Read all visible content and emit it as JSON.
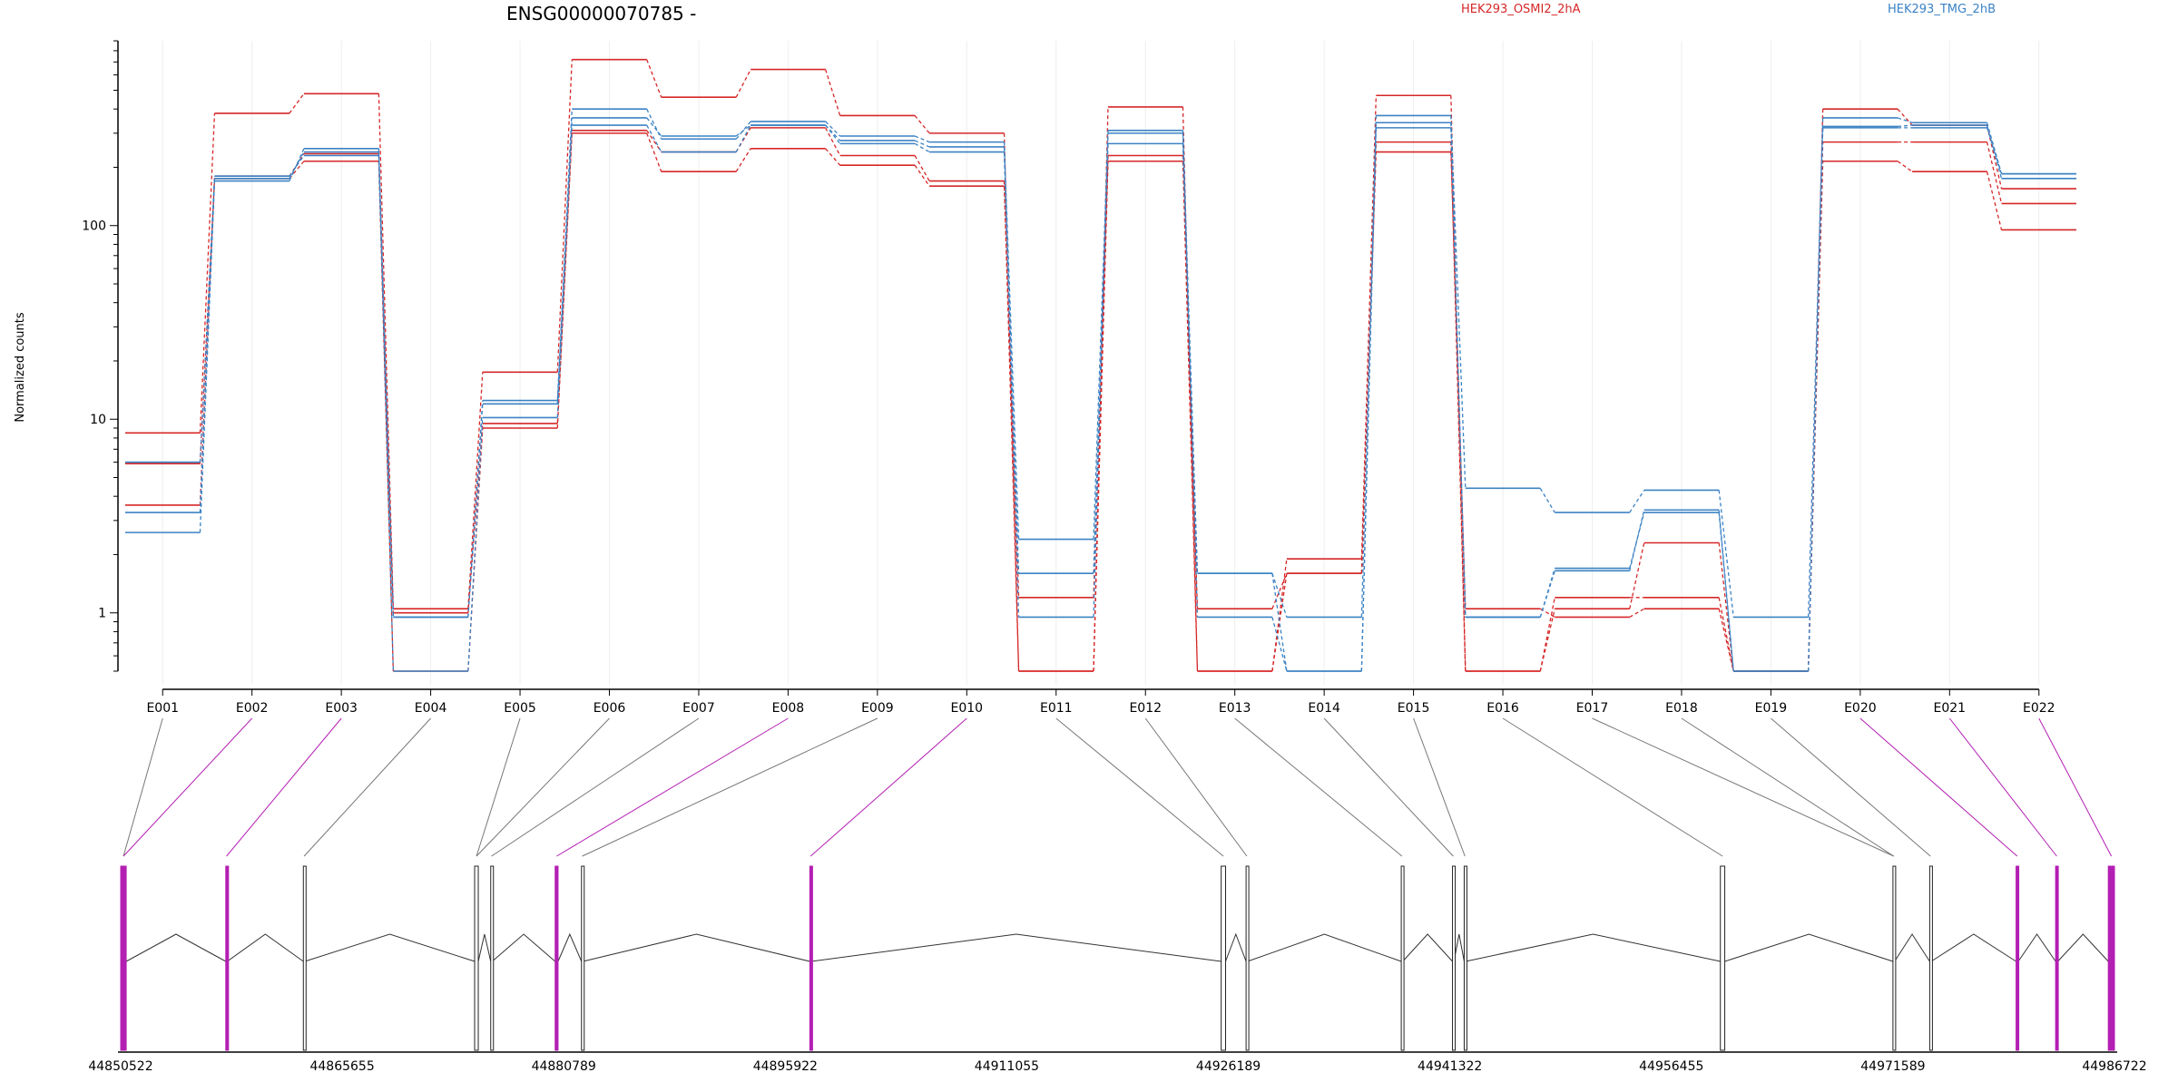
{
  "chart_data": {
    "type": "line",
    "title": "ENSG00000070785 -",
    "ylabel": "Normalized counts",
    "yscale": "log",
    "ylim": [
      0.5,
      900
    ],
    "yticks": [
      {
        "label": "1",
        "value": 1
      },
      {
        "label": "10",
        "value": 10
      },
      {
        "label": "100",
        "value": 100
      }
    ],
    "grid": "vertical",
    "categories": [
      "E001",
      "E002",
      "E003",
      "E004",
      "E005",
      "E006",
      "E007",
      "E008",
      "E009",
      "E010",
      "E011",
      "E012",
      "E013",
      "E014",
      "E015",
      "E016",
      "E017",
      "E018",
      "E019",
      "E020",
      "E021",
      "E022"
    ],
    "legend": [
      {
        "label": "HEK293_OSMI2_2hA",
        "color": "#d62728"
      },
      {
        "label": "HEK293_TMG_2hB",
        "color": "#3b82c4"
      }
    ],
    "series": [
      {
        "color": "#d62728",
        "values": [
          8.5,
          380,
          480,
          1.05,
          17.5,
          720,
          460,
          640,
          370,
          300,
          0.5,
          410,
          0.5,
          1.9,
          470,
          0.5,
          1.2,
          1.2,
          0.5,
          400,
          330,
          155
        ]
      },
      {
        "color": "#d62728",
        "values": [
          3.6,
          180,
          235,
          1.0,
          9.5,
          300,
          190,
          250,
          205,
          160,
          1.2,
          230,
          1.05,
          1.6,
          270,
          0.5,
          1.05,
          2.3,
          0.5,
          270,
          270,
          130
        ]
      },
      {
        "color": "#d62728",
        "values": [
          5.9,
          175,
          215,
          0.5,
          9.0,
          310,
          240,
          320,
          230,
          170,
          0.5,
          215,
          0.5,
          1.6,
          240,
          1.05,
          0.95,
          1.05,
          0.5,
          215,
          190,
          95
        ]
      },
      {
        "color": "#3b82c4",
        "values": [
          2.6,
          170,
          250,
          0.95,
          12.5,
          400,
          280,
          345,
          290,
          270,
          2.4,
          310,
          1.6,
          0.5,
          370,
          4.4,
          3.3,
          4.3,
          0.95,
          360,
          340,
          185
        ]
      },
      {
        "color": "#3b82c4",
        "values": [
          3.3,
          175,
          240,
          0.5,
          10.2,
          360,
          290,
          330,
          275,
          255,
          1.6,
          265,
          1.6,
          0.95,
          340,
          0.95,
          1.65,
          3.4,
          0.5,
          325,
          330,
          175
        ]
      },
      {
        "color": "#3b82c4",
        "values": [
          6.0,
          180,
          230,
          0.95,
          12.0,
          330,
          240,
          330,
          265,
          240,
          0.95,
          300,
          0.95,
          0.5,
          320,
          0.95,
          1.7,
          3.3,
          0.5,
          320,
          320,
          185
        ]
      }
    ],
    "exons": [
      {
        "label": "E001",
        "start": 44850522,
        "end": 44850900,
        "highlighted": true
      },
      {
        "label": "E002",
        "start": 44857700,
        "end": 44857800,
        "highlighted": true
      },
      {
        "label": "E003",
        "start": 44863000,
        "end": 44863100,
        "highlighted": false
      },
      {
        "label": "E004",
        "start": 44874700,
        "end": 44874950,
        "highlighted": false
      },
      {
        "label": "E005",
        "start": 44875800,
        "end": 44875900,
        "highlighted": false
      },
      {
        "label": "E006",
        "start": 44880200,
        "end": 44880400,
        "highlighted": true
      },
      {
        "label": "E007",
        "start": 44882000,
        "end": 44882100,
        "highlighted": false
      },
      {
        "label": "E008",
        "start": 44897600,
        "end": 44897700,
        "highlighted": true
      },
      {
        "label": "E009",
        "start": 44925700,
        "end": 44926000,
        "highlighted": false
      },
      {
        "label": "E010",
        "start": 44927400,
        "end": 44927500,
        "highlighted": false
      },
      {
        "label": "E011",
        "start": 44938000,
        "end": 44938100,
        "highlighted": false
      },
      {
        "label": "E012",
        "start": 44941500,
        "end": 44941600,
        "highlighted": false
      },
      {
        "label": "E013",
        "start": 44942300,
        "end": 44942400,
        "highlighted": false
      },
      {
        "label": "E014",
        "start": 44959800,
        "end": 44960100,
        "highlighted": false
      },
      {
        "label": "E015",
        "start": 44971589,
        "end": 44971700,
        "highlighted": false
      },
      {
        "label": "E016",
        "start": 44974100,
        "end": 44974200,
        "highlighted": false
      },
      {
        "label": "E017",
        "start": 44980000,
        "end": 44980150,
        "highlighted": true
      },
      {
        "label": "E018",
        "start": 44982700,
        "end": 44982850,
        "highlighted": true
      },
      {
        "label": "E019",
        "start": 44986300,
        "end": 44986722,
        "highlighted": true
      }
    ],
    "exon_links": [
      {
        "from": "E001",
        "to": "E001",
        "highlighted": false
      },
      {
        "from": "E002",
        "to": "E001",
        "highlighted": true
      },
      {
        "from": "E003",
        "to": "E002",
        "highlighted": true
      },
      {
        "from": "E004",
        "to": "E003",
        "highlighted": false
      },
      {
        "from": "E005",
        "to": "E004",
        "highlighted": false
      },
      {
        "from": "E006",
        "to": "E004",
        "highlighted": false
      },
      {
        "from": "E007",
        "to": "E005",
        "highlighted": false
      },
      {
        "from": "E008",
        "to": "E006",
        "highlighted": true
      },
      {
        "from": "E009",
        "to": "E007",
        "highlighted": false
      },
      {
        "from": "E010",
        "to": "E008",
        "highlighted": true
      },
      {
        "from": "E011",
        "to": "E009",
        "highlighted": false
      },
      {
        "from": "E012",
        "to": "E010",
        "highlighted": false
      },
      {
        "from": "E013",
        "to": "E011",
        "highlighted": false
      },
      {
        "from": "E014",
        "to": "E012",
        "highlighted": false
      },
      {
        "from": "E015",
        "to": "E013",
        "highlighted": false
      },
      {
        "from": "E016",
        "to": "E014",
        "highlighted": false
      },
      {
        "from": "E017",
        "to": "E015",
        "highlighted": false
      },
      {
        "from": "E018",
        "to": "E015",
        "highlighted": false
      },
      {
        "from": "E019",
        "to": "E016",
        "highlighted": false
      },
      {
        "from": "E020",
        "to": "E017",
        "highlighted": true
      },
      {
        "from": "E021",
        "to": "E018",
        "highlighted": true
      },
      {
        "from": "E022",
        "to": "E019",
        "highlighted": true
      }
    ],
    "genomic_axis": {
      "range": [
        44850522,
        44986722
      ],
      "tick_labels": [
        "44850522",
        "44865655",
        "44880789",
        "44895922",
        "44911055",
        "44926189",
        "44941322",
        "44956455",
        "44971589",
        "44986722"
      ]
    }
  }
}
